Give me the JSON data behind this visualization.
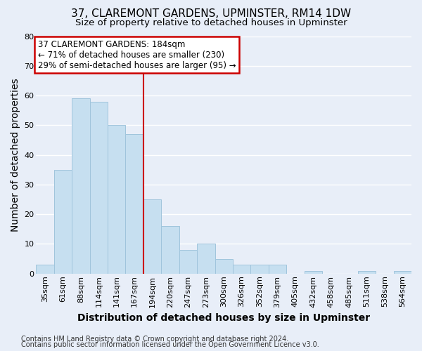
{
  "title": "37, CLAREMONT GARDENS, UPMINSTER, RM14 1DW",
  "subtitle": "Size of property relative to detached houses in Upminster",
  "xlabel": "Distribution of detached houses by size in Upminster",
  "ylabel": "Number of detached properties",
  "footer_lines": [
    "Contains HM Land Registry data © Crown copyright and database right 2024.",
    "Contains public sector information licensed under the Open Government Licence v3.0."
  ],
  "bar_labels": [
    "35sqm",
    "61sqm",
    "88sqm",
    "114sqm",
    "141sqm",
    "167sqm",
    "194sqm",
    "220sqm",
    "247sqm",
    "273sqm",
    "300sqm",
    "326sqm",
    "352sqm",
    "379sqm",
    "405sqm",
    "432sqm",
    "458sqm",
    "485sqm",
    "511sqm",
    "538sqm",
    "564sqm"
  ],
  "bar_values": [
    3,
    35,
    59,
    58,
    50,
    47,
    25,
    16,
    8,
    10,
    5,
    3,
    3,
    3,
    0,
    1,
    0,
    0,
    1,
    0,
    1
  ],
  "bar_color": "#c6dff0",
  "bar_edge_color": "#a0c4dc",
  "highlight_bar_index": 6,
  "highlight_line_color": "#cc0000",
  "annotation_title": "37 CLAREMONT GARDENS: 184sqm",
  "annotation_line1": "← 71% of detached houses are smaller (230)",
  "annotation_line2": "29% of semi-detached houses are larger (95) →",
  "annotation_box_facecolor": "#ffffff",
  "annotation_box_edgecolor": "#cc0000",
  "ylim": [
    0,
    80
  ],
  "yticks": [
    0,
    10,
    20,
    30,
    40,
    50,
    60,
    70,
    80
  ],
  "background_color": "#e8eef8",
  "plot_bg_color": "#e8eef8",
  "grid_color": "#ffffff",
  "title_fontsize": 11,
  "subtitle_fontsize": 9.5,
  "axis_label_fontsize": 10,
  "tick_fontsize": 8,
  "annotation_fontsize": 8.5,
  "footer_fontsize": 7
}
